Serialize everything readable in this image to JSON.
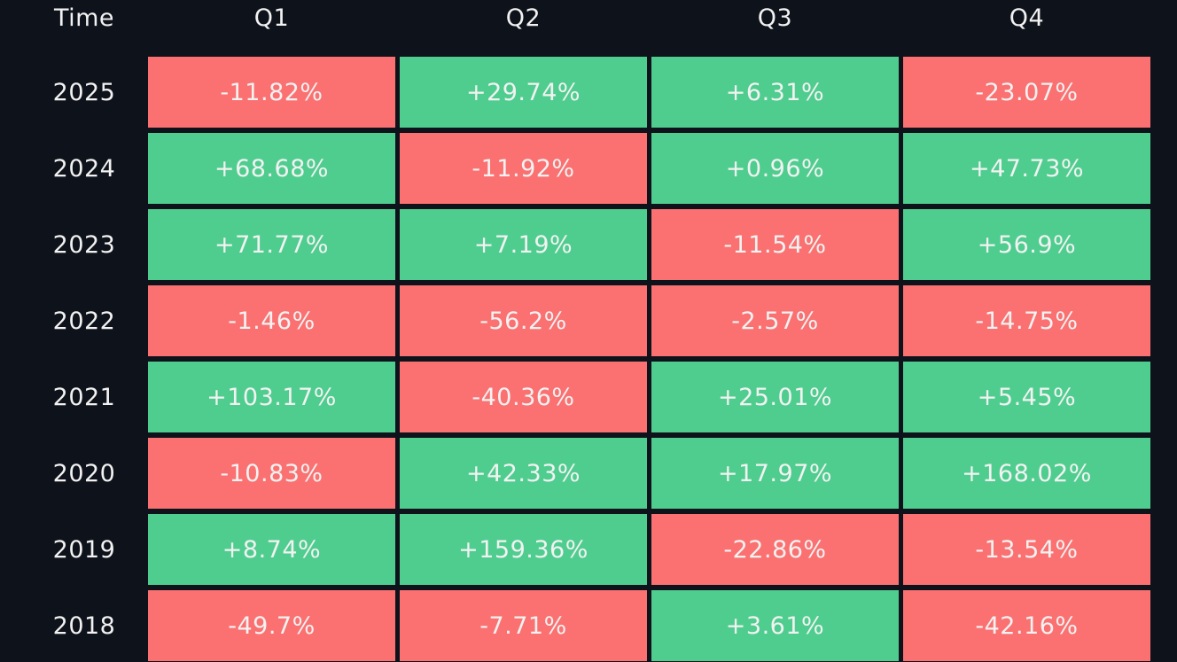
{
  "table": {
    "header": [
      "Time",
      "Q1",
      "Q2",
      "Q3",
      "Q4"
    ],
    "rows": [
      [
        "2025",
        "-11.82%",
        "+29.74%",
        "+6.31%",
        "-23.07%"
      ],
      [
        "2024",
        "+68.68%",
        "-11.92%",
        "+0.96%",
        "+47.73%"
      ],
      [
        "2023",
        "+71.77%",
        "+7.19%",
        "-11.54%",
        "+56.9%"
      ],
      [
        "2022",
        "-1.46%",
        "-56.2%",
        "-2.57%",
        "-14.75%"
      ],
      [
        "2021",
        "+103.17%",
        "-40.36%",
        "+25.01%",
        "+5.45%"
      ],
      [
        "2020",
        "-10.83%",
        "+42.33%",
        "+17.97%",
        "+168.02%"
      ],
      [
        "2019",
        "+8.74%",
        "+159.36%",
        "-22.86%",
        "-13.54%"
      ],
      [
        "2018",
        "-49.7%",
        "-7.71%",
        "+3.61%",
        "-42.16%"
      ]
    ]
  }
}
